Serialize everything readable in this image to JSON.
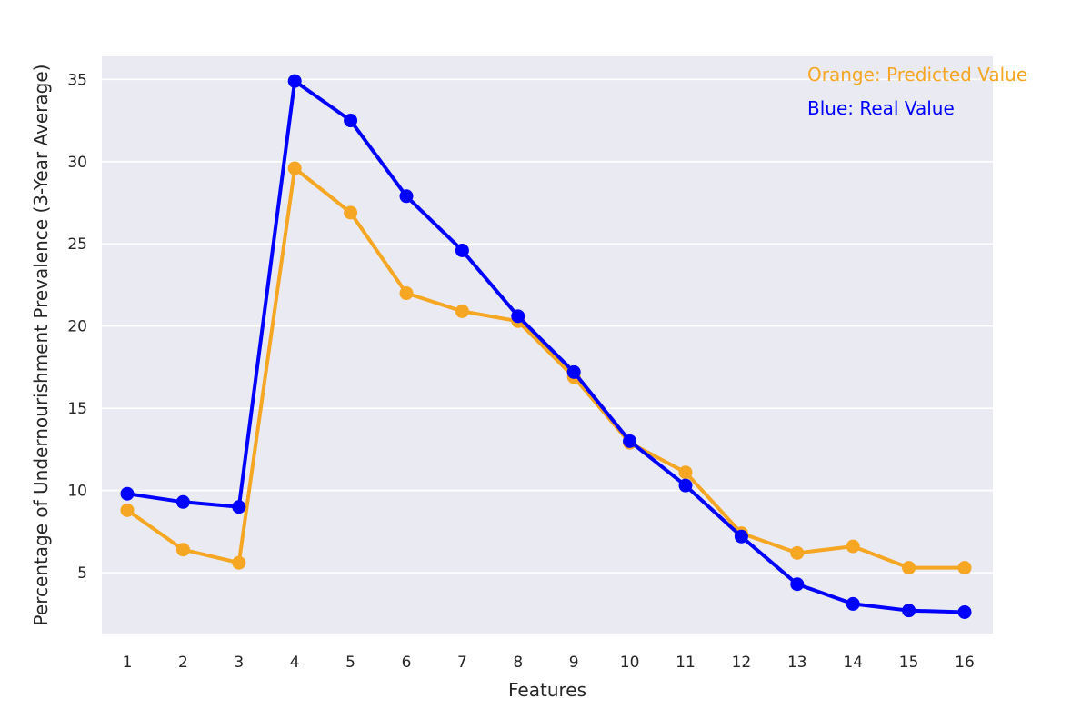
{
  "chart_data": {
    "type": "line",
    "title": "",
    "xlabel": "Features",
    "ylabel": "Percentage of Undernourishment Prevalence (3-Year Average)",
    "categories": [
      "1",
      "2",
      "3",
      "4",
      "5",
      "6",
      "7",
      "8",
      "9",
      "10",
      "11",
      "12",
      "13",
      "14",
      "15",
      "16"
    ],
    "ylim": [
      1.3,
      36.4
    ],
    "yticks": [
      5,
      10,
      15,
      20,
      25,
      30,
      35
    ],
    "grid": true,
    "legend_position": "top-right",
    "annotations": [
      {
        "text": "Orange: Predicted Value",
        "color": "#F5A623"
      },
      {
        "text": "Blue: Real Value",
        "color": "#0000FF"
      }
    ],
    "series": [
      {
        "color": "#F5A623",
        "values": [
          8.8,
          6.4,
          5.6,
          29.6,
          26.9,
          22.0,
          20.9,
          20.3,
          16.9,
          12.9,
          11.1,
          7.4,
          6.2,
          6.6,
          5.3,
          5.3
        ]
      },
      {
        "color": "#0000FF",
        "values": [
          9.8,
          9.3,
          9.0,
          34.9,
          32.5,
          27.9,
          24.6,
          20.6,
          17.2,
          13.0,
          10.3,
          7.2,
          4.3,
          3.1,
          2.7,
          2.6
        ]
      }
    ]
  }
}
